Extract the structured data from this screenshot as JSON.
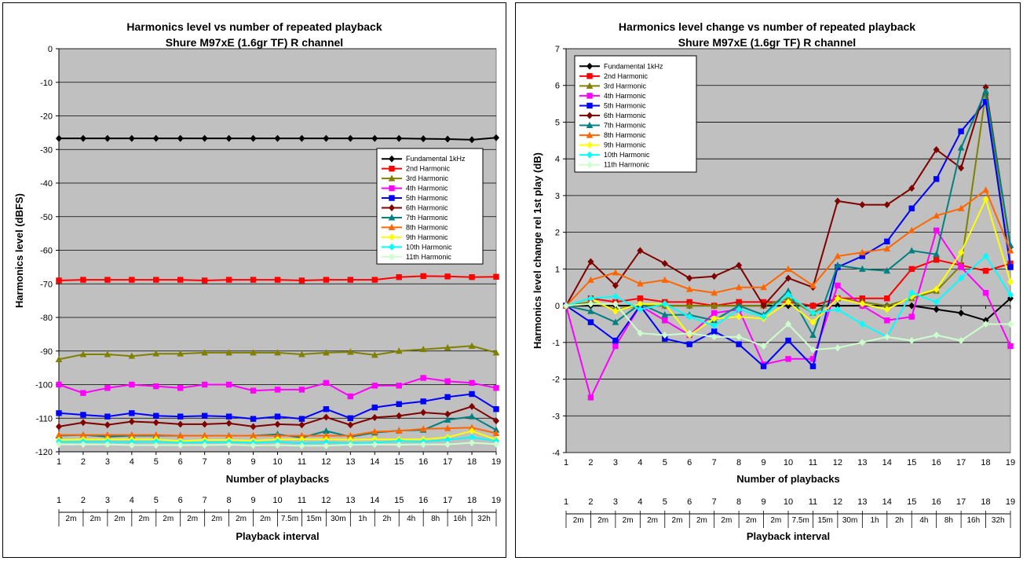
{
  "chart_data": [
    {
      "type": "line",
      "title": "Harmonics level vs number of repeated playback",
      "subtitle": "Shure M97xE (1.6gr TF) R channel",
      "xlabel": "Number of  playbacks",
      "ylabel": "Harmonics level (dBFS)",
      "x2label": "Playback interval",
      "ylim": [
        -120,
        0
      ],
      "ystep": 10,
      "legend_position": "right-middle",
      "x": [
        1,
        2,
        3,
        4,
        5,
        6,
        7,
        8,
        9,
        10,
        11,
        12,
        13,
        14,
        15,
        16,
        17,
        18,
        19
      ],
      "intervals": [
        "2m",
        "2m",
        "2m",
        "2m",
        "2m",
        "2m",
        "2m",
        "2m",
        "2m",
        "7.5m",
        "15m",
        "30m",
        "1h",
        "2h",
        "4h",
        "8h",
        "16h",
        "32h"
      ],
      "series": [
        {
          "name": "Fundamental 1kHz",
          "color": "#000000",
          "marker": "diamond",
          "values": [
            -26.7,
            -26.7,
            -26.7,
            -26.7,
            -26.7,
            -26.7,
            -26.7,
            -26.7,
            -26.7,
            -26.7,
            -26.7,
            -26.7,
            -26.7,
            -26.7,
            -26.7,
            -26.8,
            -26.9,
            -27.1,
            -26.5
          ]
        },
        {
          "name": "2nd Harmonic",
          "color": "#ff0000",
          "marker": "square",
          "values": [
            -69.0,
            -68.8,
            -68.8,
            -68.8,
            -68.8,
            -68.8,
            -69.0,
            -68.8,
            -68.8,
            -68.8,
            -69.0,
            -68.8,
            -68.8,
            -68.8,
            -68.0,
            -67.7,
            -67.8,
            -68.0,
            -67.9
          ]
        },
        {
          "name": "3rd Harmonic",
          "color": "#808000",
          "marker": "triangle",
          "values": [
            -92.5,
            -91.0,
            -91.0,
            -91.5,
            -90.8,
            -90.8,
            -90.5,
            -90.5,
            -90.5,
            -90.5,
            -91.0,
            -90.5,
            -90.3,
            -91.2,
            -90.0,
            -89.5,
            -89.0,
            -88.5,
            -90.5
          ]
        },
        {
          "name": "4th Harmonic",
          "color": "#ff00ff",
          "marker": "square",
          "values": [
            -100.0,
            -102.5,
            -101.0,
            -100.0,
            -100.5,
            -101.0,
            -100.0,
            -100.0,
            -101.8,
            -101.5,
            -101.5,
            -99.5,
            -103.5,
            -100.3,
            -100.3,
            -98.0,
            -99.0,
            -99.5,
            -101.0
          ]
        },
        {
          "name": "5th Harmonic",
          "color": "#0000ff",
          "marker": "square",
          "values": [
            -108.5,
            -109.0,
            -109.5,
            -108.5,
            -109.3,
            -109.5,
            -109.3,
            -109.5,
            -110.2,
            -109.5,
            -110.2,
            -107.3,
            -110.0,
            -106.8,
            -105.8,
            -105.0,
            -103.7,
            -102.8,
            -107.3
          ]
        },
        {
          "name": "6th Harmonic",
          "color": "#800000",
          "marker": "diamond",
          "values": [
            -112.5,
            -111.3,
            -112.0,
            -111.0,
            -111.3,
            -111.8,
            -111.8,
            -111.5,
            -112.5,
            -111.8,
            -112.0,
            -109.7,
            -112.0,
            -109.8,
            -109.3,
            -108.3,
            -108.8,
            -106.5,
            -110.8
          ]
        },
        {
          "name": "7th Harmonic",
          "color": "#008080",
          "marker": "triangle",
          "values": [
            -115.2,
            -115.0,
            -115.5,
            -115.2,
            -115.2,
            -115.2,
            -115.2,
            -115.2,
            -115.2,
            -114.8,
            -115.8,
            -113.8,
            -115.5,
            -114.3,
            -113.7,
            -113.5,
            -110.5,
            -109.5,
            -113.5
          ]
        },
        {
          "name": "8th Harmonic",
          "color": "#ff6600",
          "marker": "triangle",
          "values": [
            -115.0,
            -115.0,
            -115.0,
            -115.0,
            -115.0,
            -115.2,
            -115.2,
            -115.2,
            -115.2,
            -115.2,
            -115.2,
            -115.2,
            -115.2,
            -114.0,
            -113.8,
            -113.2,
            -113.0,
            -112.8,
            -114.5
          ]
        },
        {
          "name": "9th Harmonic",
          "color": "#ffff00",
          "marker": "diamond",
          "values": [
            -116.5,
            -116.3,
            -116.3,
            -116.3,
            -116.3,
            -116.8,
            -116.5,
            -116.5,
            -116.7,
            -116.3,
            -116.3,
            -116.3,
            -116.4,
            -116.3,
            -116.3,
            -116.3,
            -115.7,
            -113.8,
            -116.4
          ]
        },
        {
          "name": "10th Harmonic",
          "color": "#00ffff",
          "marker": "diamond",
          "values": [
            -117.0,
            -117.0,
            -117.0,
            -117.1,
            -117.0,
            -117.3,
            -117.2,
            -117.1,
            -117.3,
            -117.0,
            -117.5,
            -117.2,
            -117.5,
            -117.3,
            -116.8,
            -117.0,
            -116.4,
            -115.7,
            -116.8
          ]
        },
        {
          "name": "11th Harmonic",
          "color": "#ccffcc",
          "marker": "diamond",
          "values": [
            -117.8,
            -117.8,
            -117.8,
            -118.0,
            -118.0,
            -118.0,
            -118.0,
            -117.9,
            -118.1,
            -118.0,
            -118.2,
            -118.2,
            -117.9,
            -117.8,
            -117.9,
            -117.8,
            -117.8,
            -117.3,
            -117.7
          ]
        }
      ]
    },
    {
      "type": "line",
      "title": "Harmonics level change vs number of repeated playback",
      "subtitle": "Shure M97xE (1.6gr TF) R channel",
      "xlabel": "Number of  playbacks",
      "ylabel": "Harmonics level change rel 1st play (dB)",
      "x2label": "Playback interval",
      "ylim": [
        -4,
        7
      ],
      "ystep": 1,
      "legend_position": "top-left",
      "x": [
        1,
        2,
        3,
        4,
        5,
        6,
        7,
        8,
        9,
        10,
        11,
        12,
        13,
        14,
        15,
        16,
        17,
        18,
        19
      ],
      "intervals": [
        "2m",
        "2m",
        "2m",
        "2m",
        "2m",
        "2m",
        "2m",
        "2m",
        "2m",
        "7.5m",
        "15m",
        "30m",
        "1h",
        "2h",
        "4h",
        "8h",
        "16h",
        "32h"
      ],
      "series": [
        {
          "name": "Fundamental 1kHz",
          "color": "#000000",
          "marker": "diamond",
          "values": [
            0,
            0,
            0,
            0,
            0,
            0,
            0,
            0,
            0,
            0,
            0,
            0,
            0,
            0,
            0,
            -0.1,
            -0.2,
            -0.4,
            0.2
          ]
        },
        {
          "name": "2nd Harmonic",
          "color": "#ff0000",
          "marker": "square",
          "values": [
            0,
            0.2,
            0.1,
            0.2,
            0.1,
            0.1,
            0,
            0.1,
            0.1,
            0.1,
            0,
            0.2,
            0.2,
            0.2,
            1.0,
            1.25,
            1.1,
            0.95,
            1.15
          ]
        },
        {
          "name": "3rd Harmonic",
          "color": "#808000",
          "marker": "triangle",
          "values": [
            0,
            0.1,
            -0.1,
            0,
            0,
            0,
            0,
            0,
            0,
            0.2,
            -0.2,
            0.2,
            0.1,
            0,
            0.2,
            0.4,
            1.1,
            5.8,
            1.1
          ]
        },
        {
          "name": "4th Harmonic",
          "color": "#ff00ff",
          "marker": "square",
          "values": [
            0,
            -2.5,
            -1.1,
            0,
            -0.4,
            -0.8,
            -0.2,
            -0.1,
            -1.6,
            -1.45,
            -1.45,
            0.55,
            0,
            -0.4,
            -0.3,
            2.05,
            1.05,
            0.35,
            -1.1
          ]
        },
        {
          "name": "5th Harmonic",
          "color": "#0000ff",
          "marker": "square",
          "values": [
            0,
            -0.45,
            -0.95,
            0,
            -0.9,
            -1.05,
            -0.7,
            -1.05,
            -1.65,
            -0.95,
            -1.65,
            1.05,
            1.35,
            1.75,
            2.65,
            3.45,
            4.75,
            5.55,
            1.05
          ]
        },
        {
          "name": "6th Harmonic",
          "color": "#800000",
          "marker": "diamond",
          "values": [
            0,
            1.2,
            0.55,
            1.5,
            1.15,
            0.75,
            0.8,
            1.1,
            0,
            0.75,
            0.5,
            2.85,
            2.75,
            2.75,
            3.2,
            4.25,
            3.75,
            5.95,
            1.6
          ]
        },
        {
          "name": "7th Harmonic",
          "color": "#008080",
          "marker": "triangle",
          "values": [
            0,
            -0.15,
            -0.45,
            0.05,
            -0.25,
            -0.25,
            -0.4,
            0,
            -0.25,
            0.4,
            -0.8,
            1.1,
            1.0,
            0.95,
            1.5,
            1.4,
            4.3,
            5.85,
            1.65
          ]
        },
        {
          "name": "8th Harmonic",
          "color": "#ff6600",
          "marker": "triangle",
          "values": [
            0,
            0.7,
            0.9,
            0.6,
            0.7,
            0.45,
            0.35,
            0.5,
            0.5,
            1.0,
            0.55,
            1.35,
            1.45,
            1.55,
            2.05,
            2.45,
            2.65,
            3.15,
            1.5
          ]
        },
        {
          "name": "9th Harmonic",
          "color": "#ffff00",
          "marker": "diamond",
          "values": [
            0,
            0.2,
            -0.15,
            0.05,
            0.05,
            -0.8,
            -0.35,
            -0.3,
            -0.35,
            0.1,
            -0.45,
            0.2,
            0.05,
            -0.1,
            0.25,
            0.45,
            1.45,
            2.9,
            0.65
          ]
        },
        {
          "name": "10th Harmonic",
          "color": "#00ffff",
          "marker": "diamond",
          "values": [
            0,
            0.2,
            0.25,
            -0.1,
            0.05,
            -0.3,
            -0.55,
            -0.1,
            -0.3,
            0.3,
            -0.2,
            -0.1,
            -0.5,
            -0.85,
            0.35,
            0.1,
            0.75,
            1.35,
            0.3
          ]
        },
        {
          "name": "11th Harmonic",
          "color": "#ccffcc",
          "marker": "diamond",
          "values": [
            0,
            0.05,
            0.05,
            -0.75,
            -0.8,
            -0.75,
            -0.85,
            -0.85,
            -1.1,
            -0.5,
            -1.2,
            -1.15,
            -1.0,
            -0.85,
            -0.95,
            -0.8,
            -0.95,
            -0.5,
            -0.5
          ]
        }
      ]
    }
  ]
}
